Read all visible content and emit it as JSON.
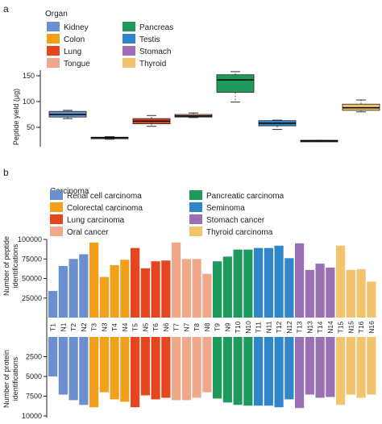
{
  "panel_a": {
    "label": "a",
    "legend_title": "Organ",
    "ylabel": "Peptide yield (µg)",
    "yticks": [
      "50",
      "100",
      "150"
    ]
  },
  "panel_b": {
    "label": "b",
    "legend_title": "Carcinoma",
    "top_ylabel_line1": "Number of peptide",
    "top_ylabel_line2": "identifications",
    "bottom_ylabel_line1": "Number of protein",
    "bottom_ylabel_line2": "identifications",
    "top_yticks": [
      "100000",
      "75000",
      "50000",
      "25000"
    ],
    "bottom_yticks": [
      "2500",
      "5000",
      "7500",
      "10000"
    ]
  },
  "chart_data": [
    {
      "type": "box",
      "panel": "a",
      "ylabel": "Peptide yield (µg)",
      "ylim": [
        15,
        165
      ],
      "legend": "top",
      "series": [
        {
          "name": "Kidney",
          "color": "#6b8fcf",
          "min": 67,
          "q1": 70,
          "median": 75,
          "q3": 81,
          "max": 83
        },
        {
          "name": "Colon",
          "color": "#f2a01c",
          "min": 27,
          "q1": 28,
          "median": 30,
          "q3": 31,
          "max": 32
        },
        {
          "name": "Lung",
          "color": "#e6461f",
          "min": 52,
          "q1": 57,
          "median": 62,
          "q3": 67,
          "max": 73
        },
        {
          "name": "Tongue",
          "color": "#f0a88a",
          "min": 69,
          "q1": 70,
          "median": 72,
          "q3": 75,
          "max": 78
        },
        {
          "name": "Pancreas",
          "color": "#1e9b5c",
          "min": 99,
          "q1": 118,
          "median": 142,
          "q3": 152,
          "max": 158
        },
        {
          "name": "Testis",
          "color": "#2f86c8",
          "min": 46,
          "q1": 53,
          "median": 58,
          "q3": 63,
          "max": 64
        },
        {
          "name": "Stomach",
          "color": "#9b6fb3",
          "min": 23,
          "q1": 24,
          "median": 24,
          "q3": 25,
          "max": 25
        },
        {
          "name": "Thyroid",
          "color": "#f2c46e",
          "min": 80,
          "q1": 83,
          "median": 88,
          "q3": 95,
          "max": 103
        }
      ]
    },
    {
      "type": "bar",
      "panel": "b-top",
      "ylabel": "Number of peptide identifications",
      "ylim": [
        0,
        100000
      ],
      "categories": [
        "T1",
        "N1",
        "T2",
        "N2",
        "T3",
        "N3",
        "T4",
        "N4",
        "T5",
        "N5",
        "T6",
        "N6",
        "T7",
        "N7",
        "T8",
        "N8",
        "T9",
        "N9",
        "T10",
        "N10",
        "T11",
        "N11",
        "T12",
        "N12",
        "T13",
        "N13",
        "T14",
        "N14",
        "T15",
        "N15",
        "T16",
        "N16"
      ],
      "values": [
        34000,
        66000,
        75000,
        81000,
        96000,
        52000,
        67000,
        74000,
        89000,
        63000,
        72000,
        73000,
        96000,
        75000,
        75000,
        56000,
        72000,
        78000,
        87000,
        87000,
        89000,
        89000,
        92000,
        76000,
        95000,
        61000,
        69000,
        64000,
        92000,
        61000,
        62000,
        46000
      ],
      "group_size": 4,
      "legend": "top",
      "groups": [
        {
          "name": "Renal cell carcinoma",
          "color": "#6b8fcf"
        },
        {
          "name": "Colorectal carcinoma",
          "color": "#f2a01c"
        },
        {
          "name": "Lung carcinoma",
          "color": "#e6461f"
        },
        {
          "name": "Oral cancer",
          "color": "#f0a88a"
        },
        {
          "name": "Pancreatic carcinoma",
          "color": "#1e9b5c"
        },
        {
          "name": "Seminoma",
          "color": "#2f86c8"
        },
        {
          "name": "Stomach cancer",
          "color": "#9b6fb3"
        },
        {
          "name": "Thyroid carcinoma",
          "color": "#f2c46e"
        }
      ]
    },
    {
      "type": "bar",
      "panel": "b-bottom",
      "ylabel": "Number of protein identifications",
      "ylim": [
        0,
        10000
      ],
      "direction": "downward",
      "categories": [
        "T1",
        "N1",
        "T2",
        "N2",
        "T3",
        "N3",
        "T4",
        "N4",
        "T5",
        "N5",
        "T6",
        "N6",
        "T7",
        "N7",
        "T8",
        "N8",
        "T9",
        "N9",
        "T10",
        "N10",
        "T11",
        "N11",
        "T12",
        "N12",
        "T13",
        "N13",
        "T14",
        "N14",
        "T15",
        "N15",
        "T16",
        "N16"
      ],
      "values": [
        5000,
        7300,
        8000,
        8600,
        8900,
        7000,
        7900,
        8200,
        8900,
        7400,
        7900,
        7700,
        8000,
        8000,
        7700,
        7000,
        7800,
        8300,
        8600,
        8700,
        8700,
        8700,
        8900,
        7900,
        9000,
        7300,
        7700,
        7600,
        8600,
        7300,
        7700,
        7300
      ]
    }
  ]
}
